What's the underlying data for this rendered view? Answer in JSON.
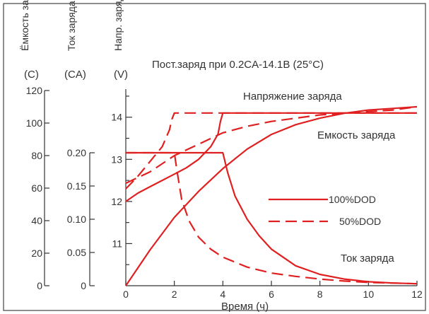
{
  "chart_data": {
    "type": "line",
    "title": "Пост.заряд при 0.2CA-14.1В (25°C)",
    "xlabel": "Время (ч)",
    "xlim": [
      0,
      12
    ],
    "x_ticks": [
      "0",
      "2",
      "4",
      "6",
      "8",
      "10",
      "12"
    ],
    "axes": [
      {
        "label": "Ёмкость заряда",
        "unit": "(C)",
        "min": 0,
        "max": 120,
        "ticks": [
          "0",
          "20",
          "40",
          "60",
          "80",
          "100",
          "120"
        ]
      },
      {
        "label": "Ток заряда",
        "unit": "(CA)",
        "min": 0,
        "max": 0.2,
        "ticks": [
          "0",
          "0.05",
          "0.10",
          "0.15",
          "0.20"
        ]
      },
      {
        "label": "Напр. заряда",
        "unit": "(V)",
        "min": 10,
        "max": 14.6,
        "ticks": [
          "11",
          "12",
          "13",
          "14"
        ]
      }
    ],
    "legend": [
      {
        "label": "100%DOD",
        "style": "solid"
      },
      {
        "label": "50%DOD",
        "style": "dashed"
      }
    ],
    "curve_labels": {
      "voltage": "Напряжение заряда",
      "capacity": "Емкость заряда",
      "current": "Ток заряда"
    },
    "series": [
      {
        "curve": "voltage",
        "dod": "100%DOD",
        "axis": 2,
        "x": [
          0,
          0.5,
          1,
          1.5,
          2,
          2.5,
          3,
          3.5,
          3.8,
          3.9,
          4,
          4.1,
          5,
          6,
          8,
          10,
          12
        ],
        "y": [
          12.0,
          12.2,
          12.35,
          12.5,
          12.65,
          12.8,
          13.0,
          13.3,
          13.6,
          13.9,
          14.1,
          14.1,
          14.1,
          14.1,
          14.1,
          14.1,
          14.1
        ]
      },
      {
        "curve": "voltage",
        "dod": "50%DOD",
        "axis": 2,
        "x": [
          0,
          0.5,
          1,
          1.5,
          1.8,
          1.9,
          2,
          2.1,
          3,
          4,
          6,
          8,
          10,
          12
        ],
        "y": [
          12.3,
          12.6,
          12.95,
          13.3,
          13.7,
          13.95,
          14.1,
          14.1,
          14.1,
          14.1,
          14.1,
          14.1,
          14.1,
          14.1
        ]
      },
      {
        "curve": "capacity",
        "dod": "100%DOD",
        "axis": 0,
        "x": [
          0,
          1,
          2,
          3,
          4,
          5,
          6,
          7,
          8,
          9,
          10,
          11,
          12
        ],
        "y": [
          0,
          22,
          42,
          58,
          72,
          84,
          93,
          99,
          103,
          106,
          108,
          109,
          110
        ]
      },
      {
        "curve": "capacity",
        "dod": "50%DOD",
        "axis": 0,
        "x": [
          0,
          1,
          2,
          3,
          4,
          5,
          6,
          7,
          8,
          9,
          10,
          11,
          12
        ],
        "y": [
          63,
          70,
          80,
          87,
          94,
          98,
          101,
          103,
          105,
          106,
          107,
          108,
          110
        ]
      },
      {
        "curve": "current",
        "dod": "100%DOD",
        "axis": 1,
        "x": [
          0,
          4,
          4.2,
          4.5,
          5,
          5.5,
          6,
          7,
          8,
          9,
          10,
          11,
          12
        ],
        "y": [
          0.2,
          0.2,
          0.17,
          0.135,
          0.1,
          0.075,
          0.055,
          0.03,
          0.017,
          0.01,
          0.006,
          0.004,
          0.003
        ]
      },
      {
        "curve": "current",
        "dod": "50%DOD",
        "axis": 1,
        "x": [
          0,
          2,
          2.1,
          2.3,
          2.6,
          3,
          3.5,
          4,
          5,
          6,
          7,
          8,
          9,
          10,
          11,
          12
        ],
        "y": [
          0.2,
          0.2,
          0.175,
          0.13,
          0.098,
          0.073,
          0.055,
          0.043,
          0.028,
          0.019,
          0.014,
          0.01,
          0.007,
          0.005,
          0.004,
          0.003
        ]
      }
    ],
    "grid": false,
    "legend_position": "right"
  },
  "colors": {
    "curve": "#e02020",
    "axis": "#333333",
    "border": "#444444",
    "background": "#ffffff"
  }
}
